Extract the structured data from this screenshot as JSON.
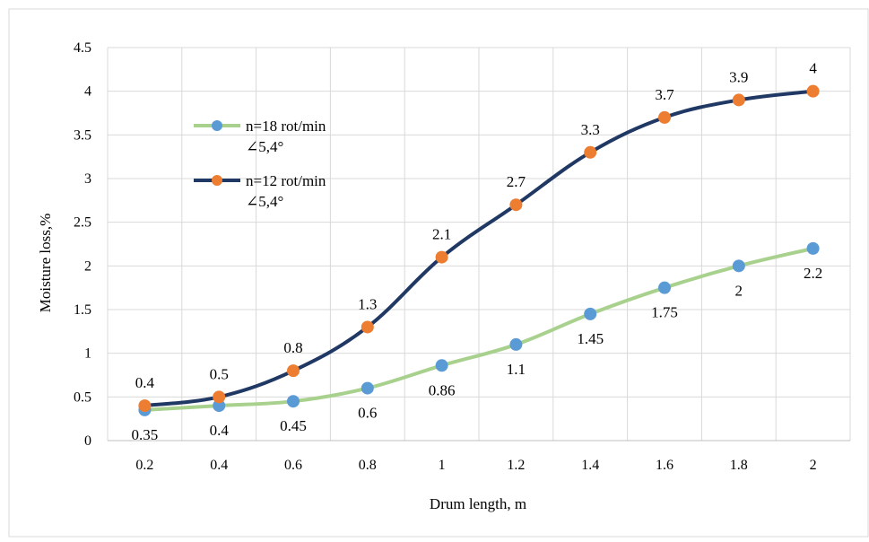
{
  "chart_data": {
    "type": "line",
    "title": "",
    "xlabel": "Drum length, m",
    "ylabel": "Moisture loss,%",
    "categories": [
      "0.2",
      "0.4",
      "0.6",
      "0.8",
      "1",
      "1.2",
      "1.4",
      "1.6",
      "1.8",
      "2"
    ],
    "ylim": [
      0,
      4.5
    ],
    "yticks": [
      "0",
      "0.5",
      "1",
      "1.5",
      "2",
      "2.5",
      "3",
      "3.5",
      "4",
      "4.5"
    ],
    "grid": true,
    "legend_position": "upper-left inside plot",
    "series": [
      {
        "name_line1": "n=18 rot/min",
        "name_line2": "∠5,4°",
        "line_color": "#a9d18e",
        "marker_color": "#5b9bd5",
        "values": [
          0.35,
          0.4,
          0.45,
          0.6,
          0.86,
          1.1,
          1.45,
          1.75,
          2,
          2.2
        ],
        "labels": [
          "0.35",
          "0.4",
          "0.45",
          "0.6",
          "0.86",
          "1.1",
          "1.45",
          "1.75",
          "2",
          "2.2"
        ]
      },
      {
        "name_line1": "n=12 rot/min",
        "name_line2": "∠5,4°",
        "line_color": "#203864",
        "marker_color": "#ed7d31",
        "values": [
          0.4,
          0.5,
          0.8,
          1.3,
          2.1,
          2.7,
          3.3,
          3.7,
          3.9,
          4
        ],
        "labels": [
          "0.4",
          "0.5",
          "0.8",
          "1.3",
          "2.1",
          "2.7",
          "3.3",
          "3.7",
          "3.9",
          "4"
        ]
      }
    ]
  }
}
